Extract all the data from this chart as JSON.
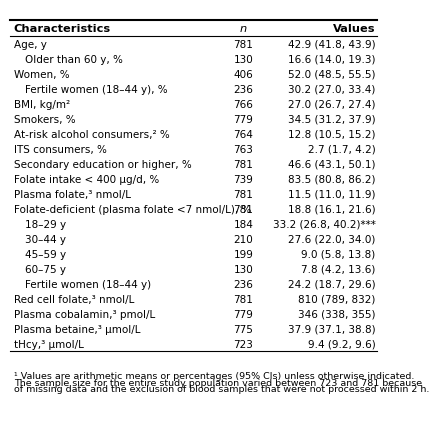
{
  "headers": [
    "Characteristics",
    "n",
    "Values"
  ],
  "rows": [
    {
      "char": "Age, y",
      "n": "781",
      "val": "42.9 (41.8, 43.9)",
      "indent": 0
    },
    {
      "char": "Older than 60 y, %",
      "n": "130",
      "val": "16.6 (14.0, 19.3)",
      "indent": 1
    },
    {
      "char": "Women, %",
      "n": "406",
      "val": "52.0 (48.5, 55.5)",
      "indent": 0
    },
    {
      "char": "Fertile women (18–44 y), %",
      "n": "236",
      "val": "30.2 (27.0, 33.4)",
      "indent": 1
    },
    {
      "char": "BMI, kg/m²",
      "n": "766",
      "val": "27.0 (26.7, 27.4)",
      "indent": 0
    },
    {
      "char": "Smokers, %",
      "n": "779",
      "val": "34.5 (31.2, 37.9)",
      "indent": 0
    },
    {
      "char": "At-risk alcohol consumers,² %",
      "n": "764",
      "val": "12.8 (10.5, 15.2)",
      "indent": 0
    },
    {
      "char": "ITS consumers, %",
      "n": "763",
      "val": "2.7 (1.7, 4.2)",
      "indent": 0
    },
    {
      "char": "Secondary education or higher, %",
      "n": "781",
      "val": "46.6 (43.1, 50.1)",
      "indent": 0
    },
    {
      "char": "Folate intake < 400 μg/d, %",
      "n": "739",
      "val": "83.5 (80.8, 86.2)",
      "indent": 0
    },
    {
      "char": "Plasma folate,³ nmol/L",
      "n": "781",
      "val": "11.5 (11.0, 11.9)",
      "indent": 0
    },
    {
      "char": "Folate-deficient (plasma folate <7 nmol/L), %",
      "n": "781",
      "val": "18.8 (16.1, 21.6)",
      "indent": 0
    },
    {
      "char": "18–29 y",
      "n": "184",
      "val": "33.2 (26.8, 40.2)***",
      "indent": 1
    },
    {
      "char": "30–44 y",
      "n": "210",
      "val": "27.6 (22.0, 34.0)",
      "indent": 1
    },
    {
      "char": "45–59 y",
      "n": "199",
      "val": "9.0 (5.8, 13.8)",
      "indent": 1
    },
    {
      "char": "60–75 y",
      "n": "130",
      "val": "7.8 (4.2, 13.6)",
      "indent": 1
    },
    {
      "char": "Fertile women (18–44 y)",
      "n": "236",
      "val": "24.2 (18.7, 29.6)",
      "indent": 1
    },
    {
      "char": "Red cell folate,³ nmol/L",
      "n": "781",
      "val": "810 (789, 832)",
      "indent": 0
    },
    {
      "char": "Plasma cobalamin,³ pmol/L",
      "n": "779",
      "val": "346 (338, 355)",
      "indent": 0
    },
    {
      "char": "Plasma betaine,³ μmol/L",
      "n": "775",
      "val": "37.9 (37.1, 38.8)",
      "indent": 0
    },
    {
      "char": "tHcy,³ μmol/L",
      "n": "723",
      "val": "9.4 (9.2, 9.6)",
      "indent": 0
    }
  ],
  "footnote_lines": [
    "¹ Values are arithmetic means or percentages (95% CIs) unless otherwise indicated.",
    "The sample size for the entire study population varied between 723 and 781 because",
    "of missing data and the exclusion of blood samples that were not processed within 2 h."
  ],
  "bg_color": "#ffffff",
  "text_color": "#000000",
  "font_size": 7.5,
  "header_font_size": 8.2,
  "footnote_font_size": 6.8,
  "indent_size": 0.03
}
